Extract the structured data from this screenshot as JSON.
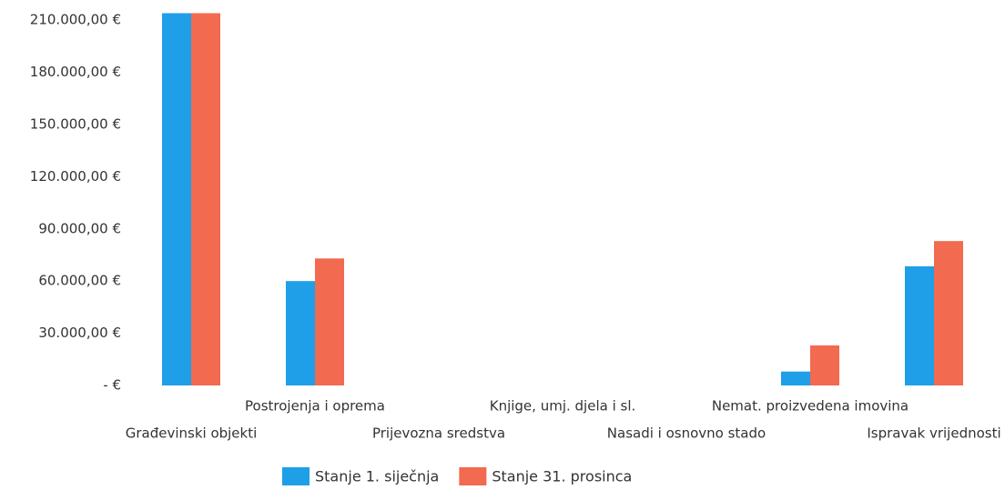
{
  "chart_data": {
    "type": "bar",
    "categories": [
      "Građevinski objekti",
      "Postrojenja i oprema",
      "Prijevozna sredstva",
      "Knjige, umj. djela i sl.",
      "Nasadi i osnovno stado",
      "Nemat. proizvedena imovina",
      "Ispravak vrijednosti"
    ],
    "series": [
      {
        "name": "Stanje 1. siječnja",
        "color": "#1e9fe8",
        "values": [
          214000,
          60000,
          0,
          0,
          0,
          8000,
          68500
        ]
      },
      {
        "name": "Stanje 31. prosinca",
        "color": "#f26a4f",
        "values": [
          214000,
          73000,
          0,
          0,
          0,
          23000,
          83000
        ]
      }
    ],
    "ylim": [
      0,
      220000
    ],
    "yticks": [
      {
        "value": 0,
        "label": "-  €"
      },
      {
        "value": 30000,
        "label": "30.000,00 €"
      },
      {
        "value": 60000,
        "label": "60.000,00 €"
      },
      {
        "value": 90000,
        "label": "90.000,00 €"
      },
      {
        "value": 120000,
        "label": "120.000,00 €"
      },
      {
        "value": 150000,
        "label": "150.000,00 €"
      },
      {
        "value": 180000,
        "label": "180.000,00 €"
      },
      {
        "value": 210000,
        "label": "210.000,00 €"
      }
    ],
    "grid": false,
    "legend": "bottom"
  }
}
